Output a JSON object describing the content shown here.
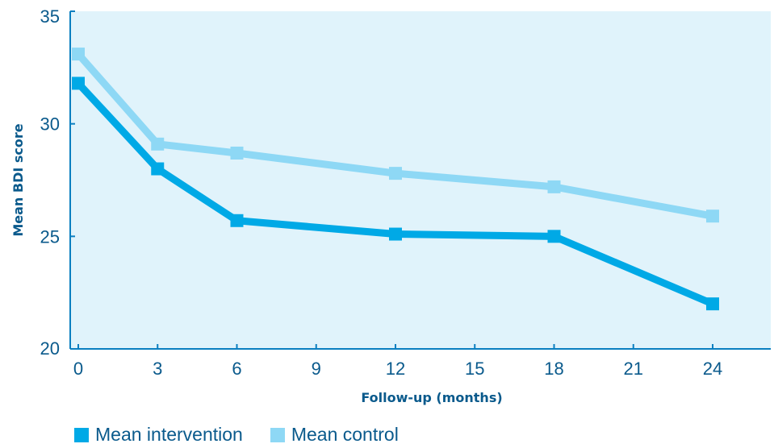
{
  "chart_data": {
    "type": "line",
    "xlabel": "Follow-up (months)",
    "ylabel": "Mean BDI score",
    "xlim": [
      0,
      26
    ],
    "ylim": [
      20,
      35
    ],
    "x_ticks": [
      0,
      3,
      6,
      9,
      12,
      15,
      18,
      21,
      24
    ],
    "y_ticks": [
      20,
      25,
      30,
      35
    ],
    "grid": false,
    "background_color": "#e0f3fb",
    "legend_position": "bottom-left",
    "series": [
      {
        "name": "Mean control",
        "color": "#8ed8f5",
        "x": [
          0,
          3,
          6,
          12,
          18,
          24
        ],
        "y": [
          33.1,
          29.1,
          28.7,
          27.8,
          27.2,
          25.9
        ]
      },
      {
        "name": "Mean intervention",
        "color": "#00a9e6",
        "x": [
          0,
          3,
          6,
          12,
          18,
          24
        ],
        "y": [
          31.8,
          28.0,
          25.7,
          25.1,
          25.0,
          22.0
        ]
      }
    ],
    "legend": [
      {
        "label": "Mean intervention",
        "color": "#00a9e6"
      },
      {
        "label": "Mean control",
        "color": "#8ed8f5"
      }
    ]
  }
}
